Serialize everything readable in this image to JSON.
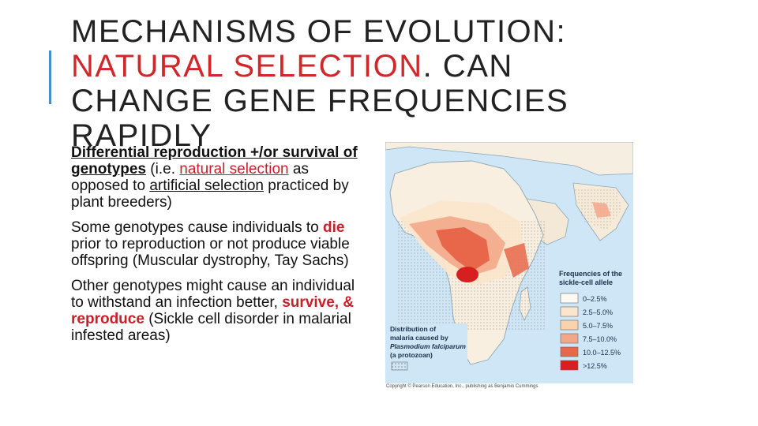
{
  "slide": {
    "title": {
      "line1": "MECHANISMS OF EVOLUTION:",
      "line2_red": "NATURAL SELECTION",
      "line2_rest": ". CAN",
      "line3": "CHANGE GENE FREQUENCIES",
      "line4": "RAPIDLY"
    },
    "p1": {
      "a": "Differential reproduction +/or survival of genotypes",
      "b": " (i.e. ",
      "c": "natural selection",
      "d": " as opposed to ",
      "e": "artificial selection",
      "f": " practiced by plant breeders)"
    },
    "p2": {
      "a": "Some genotypes cause individuals to ",
      "b": "die",
      "c": " prior to reproduction or not produce viable offspring (Muscular dystrophy, Tay Sachs)"
    },
    "p3": {
      "a": "Other genotypes might cause an individual to withstand an infection better, ",
      "b": "survive, & reproduce",
      "c": " (Sickle cell disorder in malarial infested areas)"
    }
  },
  "figure": {
    "legend_title_line1": "Frequencies of the",
    "legend_title_line2": "sickle-cell allele",
    "legend": [
      {
        "label": "0–2.5%",
        "color": "#fdfaf3"
      },
      {
        "label": "2.5–5.0%",
        "color": "#fbe5cc"
      },
      {
        "label": "5.0–7.5%",
        "color": "#f8d3ac"
      },
      {
        "label": "7.5–10.0%",
        "color": "#f3a78a"
      },
      {
        "label": "10.0–12.5%",
        "color": "#e8674a"
      },
      {
        "label": ">12.5%",
        "color": "#d81f1f"
      }
    ],
    "malaria_line1": "Distribution of",
    "malaria_line2": "malaria caused by",
    "malaria_line3": "Plasmodium falciparum",
    "malaria_line4": "(a protozoan)",
    "copyright": "Copyright © Pearson Education, Inc., publishing as Benjamin Cummings"
  }
}
